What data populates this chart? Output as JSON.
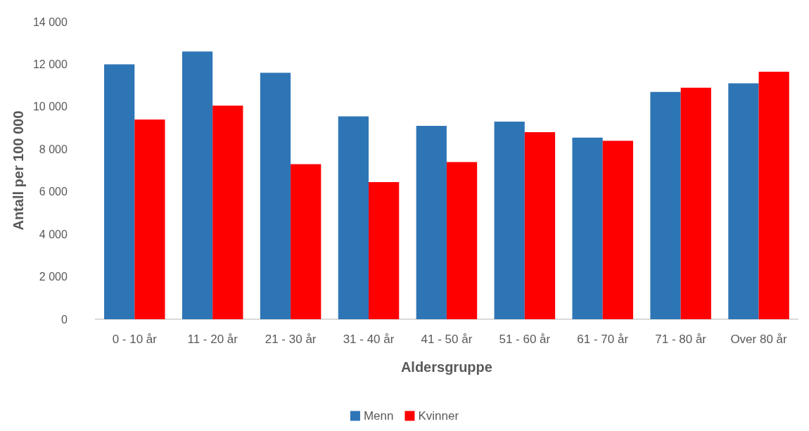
{
  "chart_data": {
    "type": "bar",
    "xlabel": "Aldersgruppe",
    "ylabel": "Antall per 100 000",
    "categories": [
      "0 - 10 år",
      "11 - 20 år",
      "21 - 30 år",
      "31 - 40 år",
      "41 - 50 år",
      "51 - 60 år",
      "61 - 70 år",
      "71 - 80 år",
      "Over 80 år"
    ],
    "series": [
      {
        "name": "Menn",
        "color": "#2e75b6",
        "values": [
          12000,
          12600,
          11600,
          9550,
          9100,
          9300,
          8550,
          10700,
          11100
        ]
      },
      {
        "name": "Kvinner",
        "color": "#ff0000",
        "values": [
          9400,
          10050,
          7300,
          6450,
          7400,
          8800,
          8400,
          10900,
          11650
        ]
      }
    ],
    "ylim": [
      0,
      14000
    ],
    "yticks": [
      0,
      {
        "value": 2000,
        "label": "2 000"
      },
      {
        "value": 4000,
        "label": "4 000"
      },
      {
        "value": 6000,
        "label": "6 000"
      },
      {
        "value": 8000,
        "label": "8 000"
      },
      {
        "value": 10000,
        "label": "10 000"
      },
      {
        "value": 12000,
        "label": "12 000"
      },
      {
        "value": 14000,
        "label": "14 000"
      }
    ],
    "grid": false,
    "legend": "bottom"
  }
}
